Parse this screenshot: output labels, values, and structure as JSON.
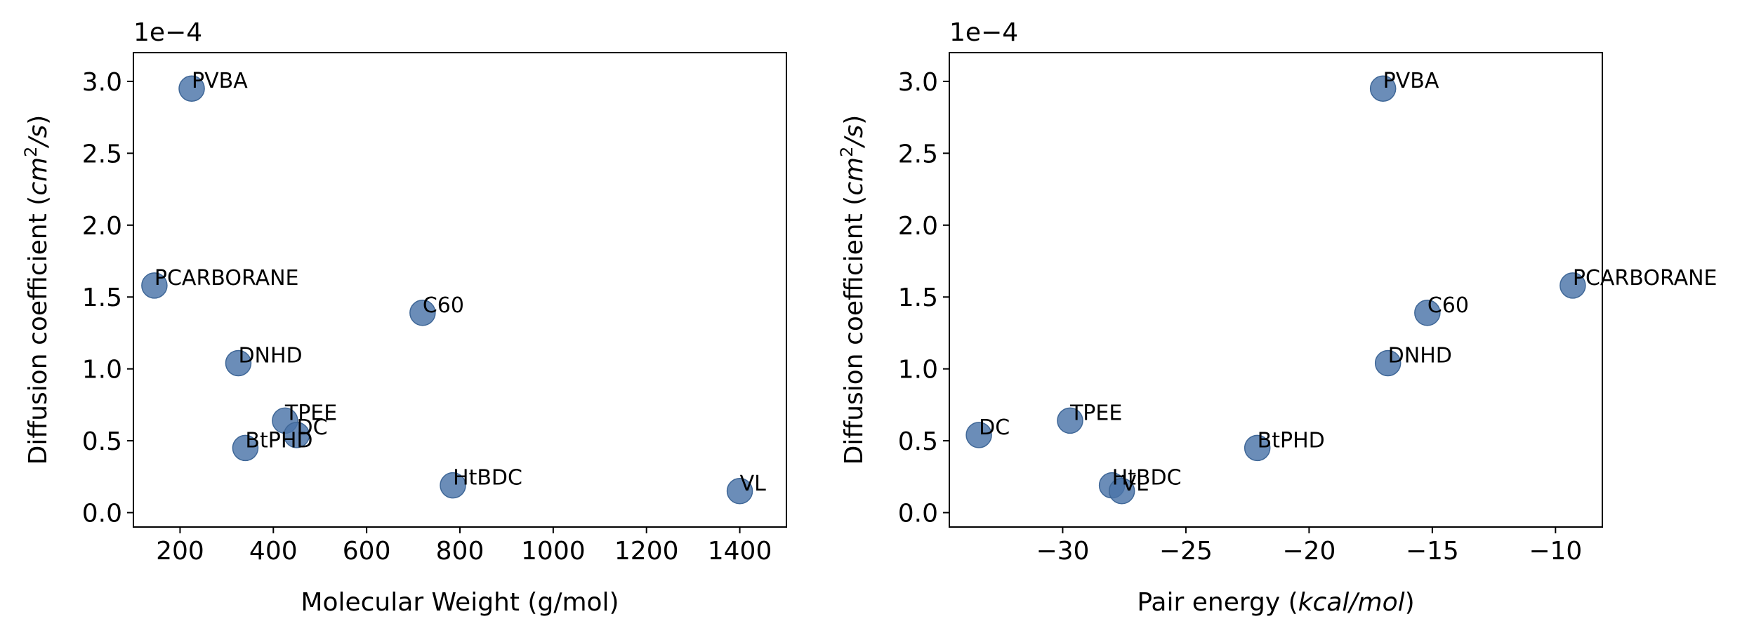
{
  "chart_data": [
    {
      "type": "scatter",
      "xlabel": "Molecular Weight (g/mol)",
      "ylabel_pre": "Diffusion coefficient (",
      "ylabel_italic": "cm",
      "ylabel_sup": "2",
      "ylabel_italic2": "/s",
      "ylabel_post": ")",
      "offset_label": "1e−4",
      "xlim": [
        100,
        1500
      ],
      "ylim": [
        -0.1,
        3.2
      ],
      "xticks": [
        200,
        400,
        600,
        800,
        1000,
        1200,
        1400
      ],
      "yticks": [
        0.0,
        0.5,
        1.0,
        1.5,
        2.0,
        2.5,
        3.0
      ],
      "ytick_labels": [
        "0.0",
        "0.5",
        "1.0",
        "1.5",
        "2.0",
        "2.5",
        "3.0"
      ],
      "marker_color": "#4a74a8",
      "points": [
        {
          "label": "PVBA",
          "x": 225,
          "y": 2.95
        },
        {
          "label": "PCARBORANE",
          "x": 145,
          "y": 1.58
        },
        {
          "label": "C60",
          "x": 720,
          "y": 1.39
        },
        {
          "label": "DNHD",
          "x": 325,
          "y": 1.04
        },
        {
          "label": "TPEE",
          "x": 425,
          "y": 0.64
        },
        {
          "label": "DC",
          "x": 450,
          "y": 0.54
        },
        {
          "label": "BtPHD",
          "x": 340,
          "y": 0.45
        },
        {
          "label": "HtBDC",
          "x": 785,
          "y": 0.19
        },
        {
          "label": "VL",
          "x": 1400,
          "y": 0.15
        }
      ]
    },
    {
      "type": "scatter",
      "xlabel_pre": "Pair energy (",
      "xlabel_italic": "kcal/mol",
      "xlabel_post": ")",
      "ylabel_pre": "Diffusion coefficient (",
      "ylabel_italic": "cm",
      "ylabel_sup": "2",
      "ylabel_italic2": "/s",
      "ylabel_post": ")",
      "offset_label": "1e−4",
      "xlim": [
        -34.6,
        -8.1
      ],
      "ylim": [
        -0.1,
        3.2
      ],
      "xticks": [
        -30,
        -25,
        -20,
        -15,
        -10
      ],
      "xtick_labels": [
        "−30",
        "−25",
        "−20",
        "−15",
        "−10"
      ],
      "yticks": [
        0.0,
        0.5,
        1.0,
        1.5,
        2.0,
        2.5,
        3.0
      ],
      "ytick_labels": [
        "0.0",
        "0.5",
        "1.0",
        "1.5",
        "2.0",
        "2.5",
        "3.0"
      ],
      "marker_color": "#4a74a8",
      "points": [
        {
          "label": "PVBA",
          "x": -17.0,
          "y": 2.95
        },
        {
          "label": "PCARBORANE",
          "x": -9.3,
          "y": 1.58
        },
        {
          "label": "C60",
          "x": -15.2,
          "y": 1.39
        },
        {
          "label": "DNHD",
          "x": -16.8,
          "y": 1.04
        },
        {
          "label": "DC",
          "x": -33.4,
          "y": 0.54
        },
        {
          "label": "TPEE",
          "x": -29.7,
          "y": 0.64
        },
        {
          "label": "BtPHD",
          "x": -22.1,
          "y": 0.45
        },
        {
          "label": "HtBDC",
          "x": -28.0,
          "y": 0.19
        },
        {
          "label": "VL",
          "x": -27.6,
          "y": 0.15
        }
      ]
    }
  ]
}
